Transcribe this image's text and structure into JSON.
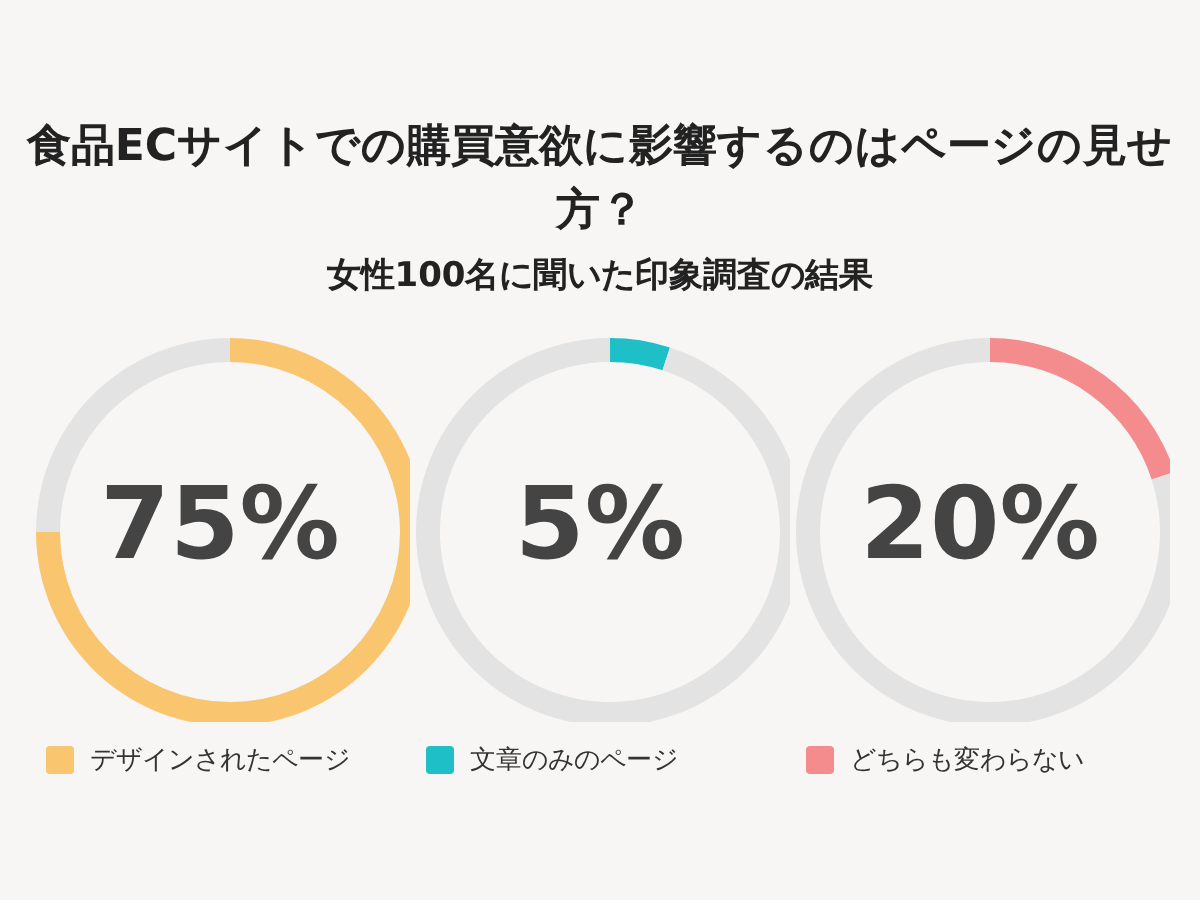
{
  "chart_data": [
    {
      "type": "donut",
      "title": "食品ECサイトでの購買意欲に影響するのはページの見せ方？",
      "subtitle": "女性100名に聞いた印象調査の結果",
      "categories": [
        "デザインされたページ",
        null
      ],
      "values": [
        75,
        25
      ],
      "colors": [
        "#f9c56f",
        "#e3e3e3"
      ],
      "annotations": [
        "75%"
      ],
      "legend": "bottom"
    },
    {
      "type": "donut",
      "categories": [
        "文章のみのページ",
        null
      ],
      "values": [
        5,
        95
      ],
      "colors": [
        "#1ebfc6",
        "#e3e3e3"
      ],
      "annotations": [
        "5%"
      ],
      "legend": "bottom"
    },
    {
      "type": "donut",
      "categories": [
        "どちらも変わらない",
        null
      ],
      "values": [
        20,
        80
      ],
      "colors": [
        "#f48b8d",
        "#e3e3e3"
      ],
      "annotations": [
        "20%"
      ],
      "legend": "bottom"
    }
  ]
}
